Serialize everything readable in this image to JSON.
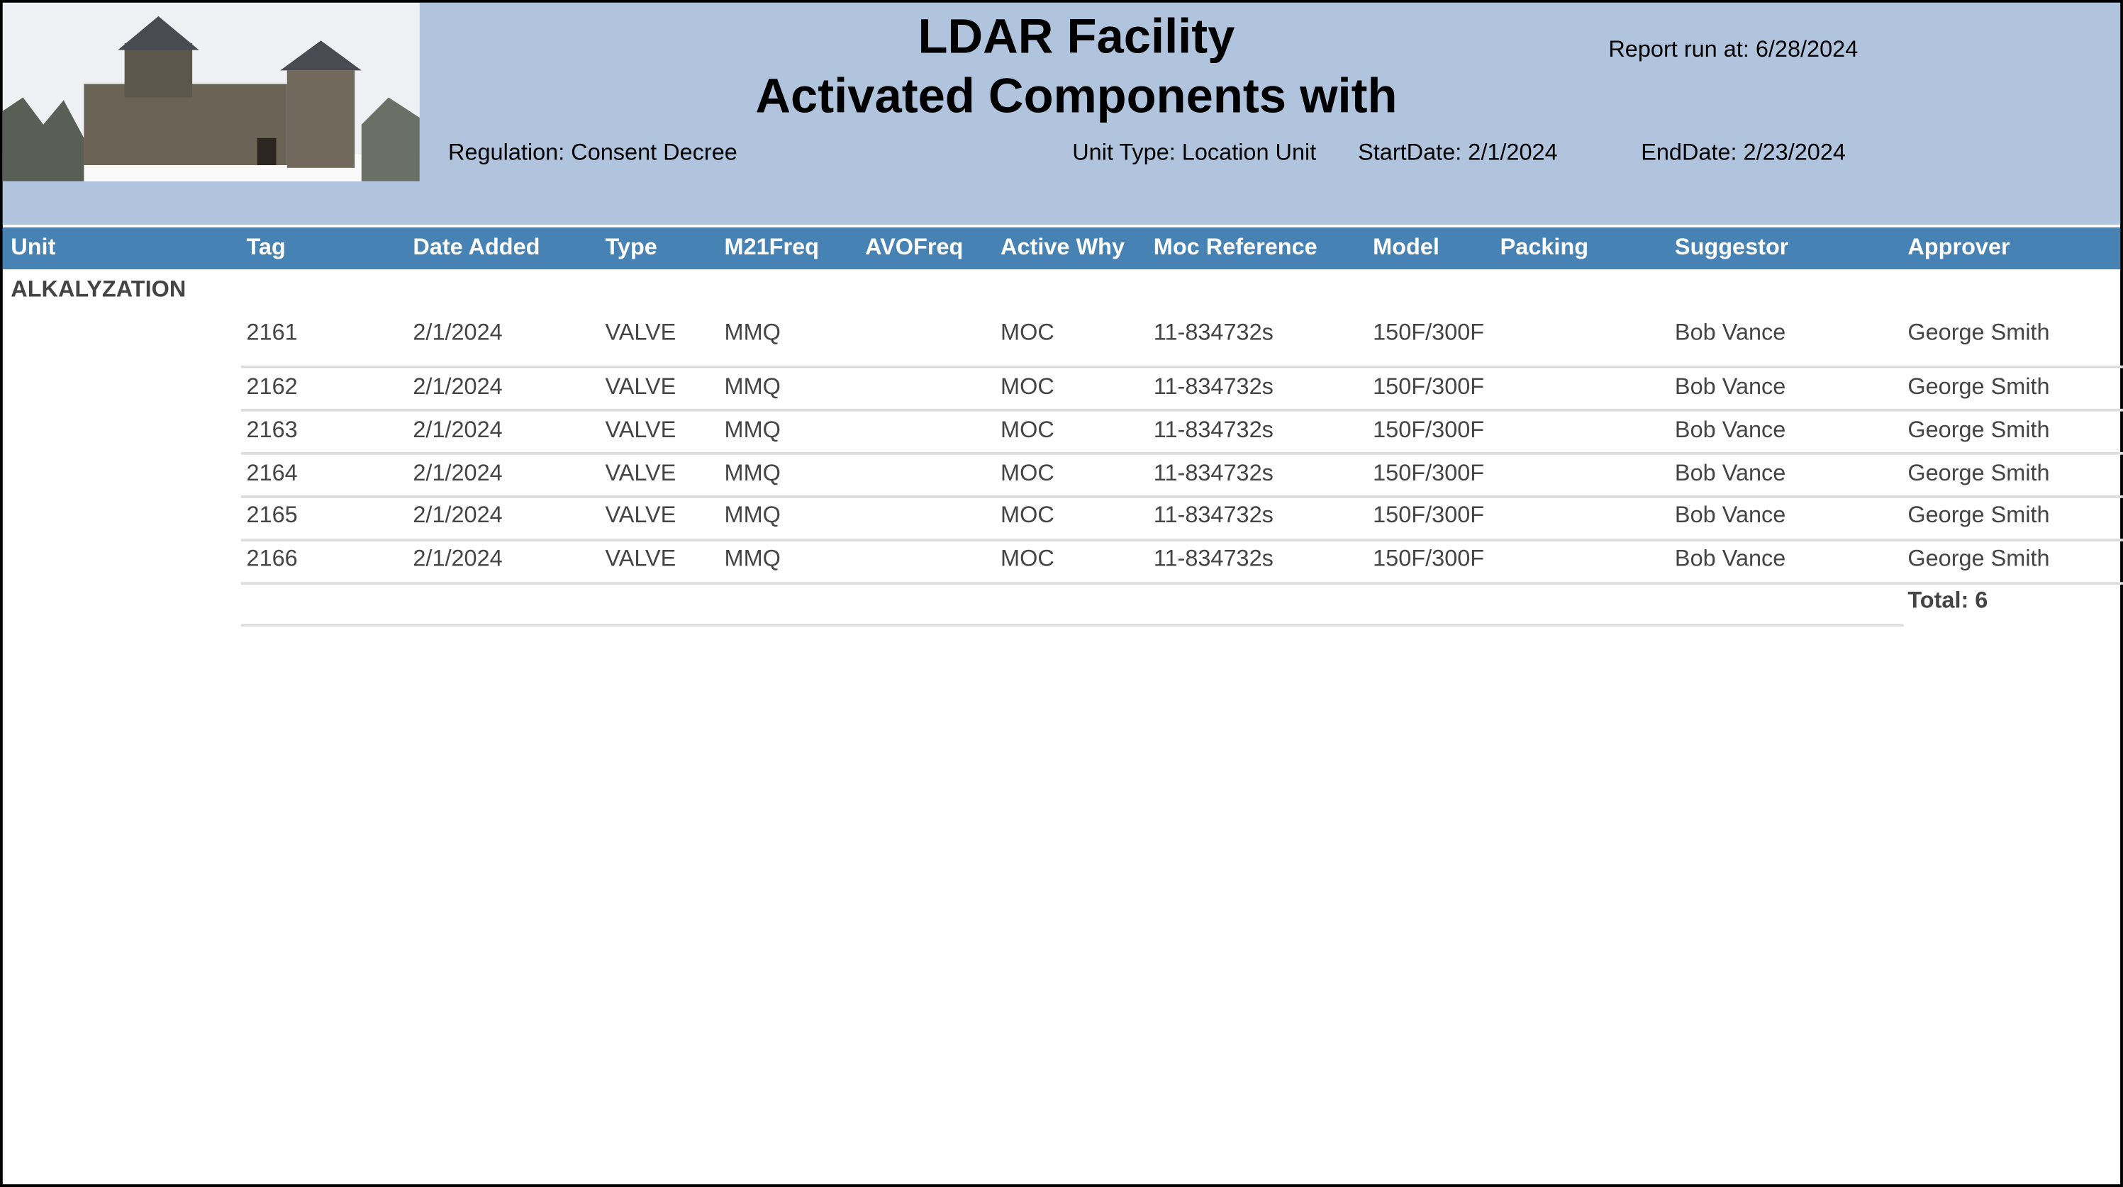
{
  "header": {
    "title": "LDAR Facility",
    "subtitle": "Activated Components with",
    "report_run": "Report run at: 6/28/2024",
    "regulation": "Regulation: Consent Decree",
    "unit_type": "Unit Type: Location Unit",
    "start_date": "StartDate: 2/1/2024",
    "end_date": "EndDate: 2/23/2024"
  },
  "table": {
    "columns": [
      "Unit",
      "Tag",
      "Date Added",
      "Type",
      "M21Freq",
      "AVOFreq",
      "Active Why",
      "Moc Reference",
      "Model",
      "Packing",
      "Suggestor",
      "Approver"
    ],
    "group": "ALKALYZATION",
    "rows": [
      {
        "tag": 2161,
        "date_added": "2/1/2024",
        "type": "VALVE",
        "m21freq": "MMQ",
        "active_why": "MOC",
        "moc_reference": "11-834732s",
        "model": "150F/300F",
        "suggestor": "Bob Vance",
        "approver": "George Smith"
      },
      {
        "tag": 2162,
        "date_added": "2/1/2024",
        "type": "VALVE",
        "m21freq": "MMQ",
        "active_why": "MOC",
        "moc_reference": "11-834732s",
        "model": "150F/300F",
        "suggestor": "Bob Vance",
        "approver": "George Smith"
      },
      {
        "tag": 2163,
        "date_added": "2/1/2024",
        "type": "VALVE",
        "m21freq": "MMQ",
        "active_why": "MOC",
        "moc_reference": "11-834732s",
        "model": "150F/300F",
        "suggestor": "Bob Vance",
        "approver": "George Smith"
      },
      {
        "tag": 2164,
        "date_added": "2/1/2024",
        "type": "VALVE",
        "m21freq": "MMQ",
        "active_why": "MOC",
        "moc_reference": "11-834732s",
        "model": "150F/300F",
        "suggestor": "Bob Vance",
        "approver": "George Smith"
      },
      {
        "tag": 2165,
        "date_added": "2/1/2024",
        "type": "VALVE",
        "m21freq": "MMQ",
        "active_why": "MOC",
        "moc_reference": "11-834732s",
        "model": "150F/300F",
        "suggestor": "Bob Vance",
        "approver": "George Smith"
      },
      {
        "tag": 2166,
        "date_added": "2/1/2024",
        "type": "VALVE",
        "m21freq": "MMQ",
        "active_why": "MOC",
        "moc_reference": "11-834732s",
        "model": "150F/300F",
        "suggestor": "Bob Vance",
        "approver": "George Smith"
      }
    ],
    "total": "Total: 6"
  }
}
